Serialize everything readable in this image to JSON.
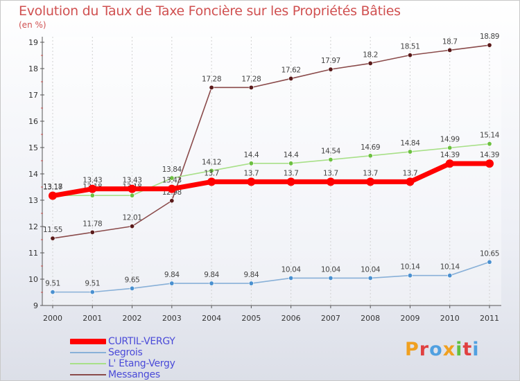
{
  "header": {
    "title": "Evolution du Taux de Taxe Foncière sur les Propriétés Bâties",
    "unit": "(en %)"
  },
  "logo": {
    "text": "Proxiti",
    "colors": [
      "#f0a020",
      "#e04040",
      "#50a0e0",
      "#f0a020",
      "#60c040",
      "#e04040",
      "#50a0e0"
    ]
  },
  "chart_data": {
    "type": "line",
    "title": "Evolution du Taux de Taxe Foncière sur les Propriétés Bâties",
    "ylabel": "(en %)",
    "x": [
      "2000",
      "2001",
      "2002",
      "2003",
      "2004",
      "2005",
      "2006",
      "2007",
      "2008",
      "2009",
      "2010",
      "2011"
    ],
    "ylim": [
      9,
      19
    ],
    "yticks": [
      "9",
      "10",
      "11",
      "12",
      "13",
      "14",
      "15",
      "16",
      "17",
      "18",
      "19"
    ],
    "legend_position": "bottom-left",
    "series": [
      {
        "name": "Messanges",
        "color": "#8a4a4a",
        "dot": "#5a1a1a",
        "values": [
          11.55,
          11.78,
          12.01,
          12.98,
          17.28,
          17.28,
          17.62,
          17.97,
          18.2,
          18.51,
          18.7,
          18.89
        ],
        "labels": [
          "11.55",
          "11.78",
          "12.01",
          "12.98",
          "17.28",
          "17.28",
          "17.62",
          "17.97",
          "18.2",
          "18.51",
          "18.7",
          "18.89"
        ]
      },
      {
        "name": "L' Etang-Vergy",
        "color": "#a8e088",
        "dot": "#6cc040",
        "values": [
          13.18,
          13.18,
          13.18,
          13.84,
          14.12,
          14.4,
          14.4,
          14.54,
          14.69,
          14.84,
          14.99,
          15.14
        ],
        "labels": [
          "13.18",
          "13.18",
          "13.18",
          "13.84",
          "14.12",
          "14.4",
          "14.4",
          "14.54",
          "14.69",
          "14.84",
          "14.99",
          "15.14"
        ]
      },
      {
        "name": "Segrois",
        "color": "#88b0d8",
        "dot": "#4a90d0",
        "values": [
          9.51,
          9.51,
          9.65,
          9.84,
          9.84,
          9.84,
          10.04,
          10.04,
          10.04,
          10.14,
          10.14,
          10.65
        ],
        "labels": [
          "9.51",
          "9.51",
          "9.65",
          "9.84",
          "9.84",
          "9.84",
          "10.04",
          "10.04",
          "10.04",
          "10.14",
          "10.14",
          "10.65"
        ]
      },
      {
        "name": "CURTIL-VERGY",
        "color": "#ff0000",
        "dot": "#ff0000",
        "values": [
          13.17,
          13.43,
          13.43,
          13.43,
          13.7,
          13.7,
          13.7,
          13.7,
          13.7,
          13.7,
          14.39,
          14.39
        ],
        "labels": [
          "13.17",
          "13.43",
          "13.43",
          "13.43",
          "13.7",
          "13.7",
          "13.7",
          "13.7",
          "13.7",
          "13.7",
          "14.39",
          "14.39"
        ]
      }
    ],
    "legend": [
      "CURTIL-VERGY",
      "Segrois",
      "L' Etang-Vergy",
      "Messanges"
    ]
  }
}
